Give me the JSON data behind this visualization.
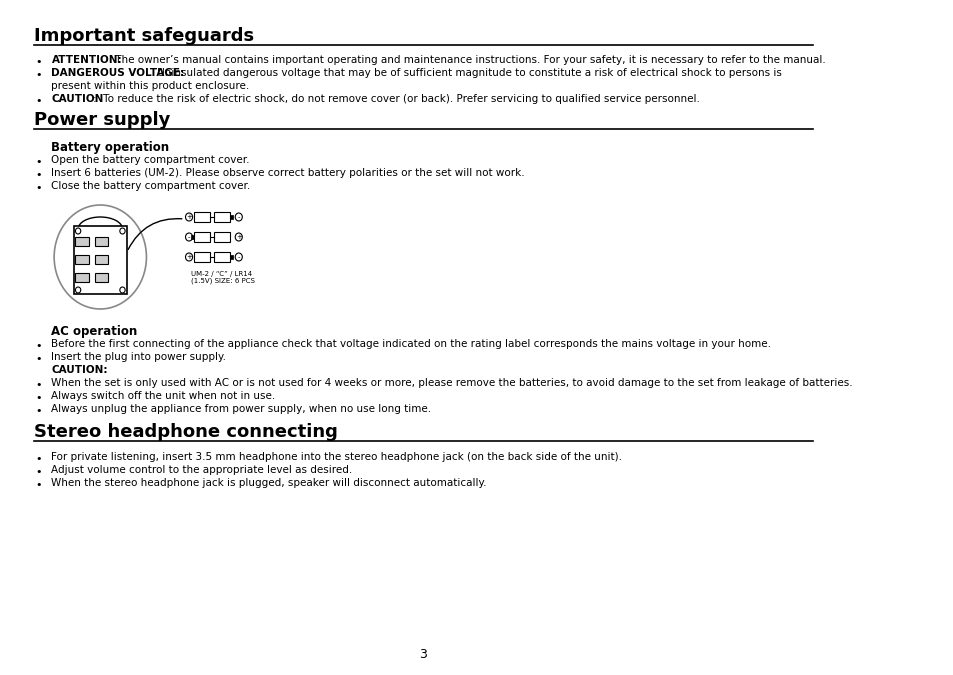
{
  "bg_color": "#ffffff",
  "text_color": "#000000",
  "title1": "Important safeguards",
  "title2": "Power supply",
  "title3": "Stereo headphone connecting",
  "section1_bullets": [
    [
      "ATTENTION:",
      " The owner’s manual contains important operating and maintenance instructions. For your safety, it is necessary to refer to the manual."
    ],
    [
      "DANGEROUS VOLTAGE:",
      " Uninsulated dangerous voltage that may be of sufficient magnitude to constitute a risk of electrical shock to persons is\npresent within this product enclosure."
    ],
    [
      "CAUTION",
      ":  To reduce the risk of electric shock, do not remove cover (or back). Prefer servicing to qualified service personnel."
    ]
  ],
  "battery_op_title": "Battery operation",
  "battery_bullets": [
    "Open the battery compartment cover.",
    "Insert 6 batteries (UM-2). Please observe correct battery polarities or the set will not work.",
    "Close the battery compartment cover."
  ],
  "ac_op_title": "AC operation",
  "ac_bullets": [
    "Before the first connecting of the appliance check that voltage indicated on the rating label corresponds the mains voltage in your home.",
    "Insert the plug into power supply."
  ],
  "caution_label": "CAUTION:",
  "caution_bullets": [
    "When the set is only used with AC or is not used for 4 weeks or more, please remove the batteries, to avoid damage to the set from leakage of batteries.",
    "Always switch off the unit when not in use.",
    "Always unplug the appliance from power supply, when no use long time."
  ],
  "stereo_bullets": [
    "For private listening, insert 3.5 mm headphone into the stereo headphone jack (on the back side of the unit).",
    "Adjust volume control to the appropriate level as desired.",
    "When the stereo headphone jack is plugged, speaker will disconnect automatically."
  ],
  "page_number": "3",
  "battery_label": "UM-2 / “C” / LR14\n(1.5V) SIZE: 6 PCS"
}
